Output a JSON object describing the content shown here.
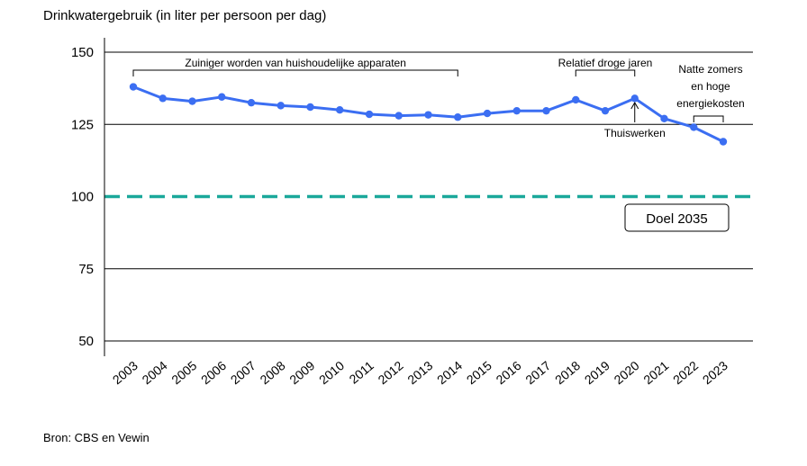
{
  "title": "Drinkwatergebruik (in liter per persoon per dag)",
  "source": "Bron: CBS en Vewin",
  "colors": {
    "line": "#3b6ef2",
    "goal": "#1aa89a",
    "grid": "#000000"
  },
  "chart_data": {
    "type": "line",
    "title": "Drinkwatergebruik (in liter per persoon per dag)",
    "xlabel": "",
    "ylabel": "",
    "ylim": [
      45,
      155
    ],
    "yticks": [
      50,
      75,
      100,
      125,
      150
    ],
    "grid": "horizontal",
    "categories": [
      "2003",
      "2004",
      "2005",
      "2006",
      "2007",
      "2008",
      "2009",
      "2010",
      "2011",
      "2012",
      "2013",
      "2014",
      "2015",
      "2016",
      "2017",
      "2018",
      "2019",
      "2020",
      "2021",
      "2022",
      "2023"
    ],
    "series": [
      {
        "values": [
          138,
          134,
          133,
          134.5,
          132.5,
          131.5,
          131,
          130,
          128.5,
          128,
          128.3,
          127.5,
          128.8,
          129.7,
          129.7,
          133.5,
          129.7,
          134,
          127,
          124,
          119
        ]
      }
    ],
    "goal": {
      "value": 100,
      "label": "Doel 2035"
    },
    "annotations": [
      {
        "text": "Zuiniger worden van huishoudelijke apparaten",
        "from": "2003",
        "to": "2014",
        "type": "bracket"
      },
      {
        "text": "Relatief droge jaren",
        "from": "2018",
        "to": "2020",
        "type": "bracket"
      },
      {
        "text": "Natte zomers",
        "text2": "en hoge",
        "text3": "energiekosten",
        "from": "2022",
        "to": "2023",
        "type": "bracket"
      },
      {
        "text": "Thuiswerken",
        "at": "2020",
        "type": "arrow"
      }
    ]
  }
}
